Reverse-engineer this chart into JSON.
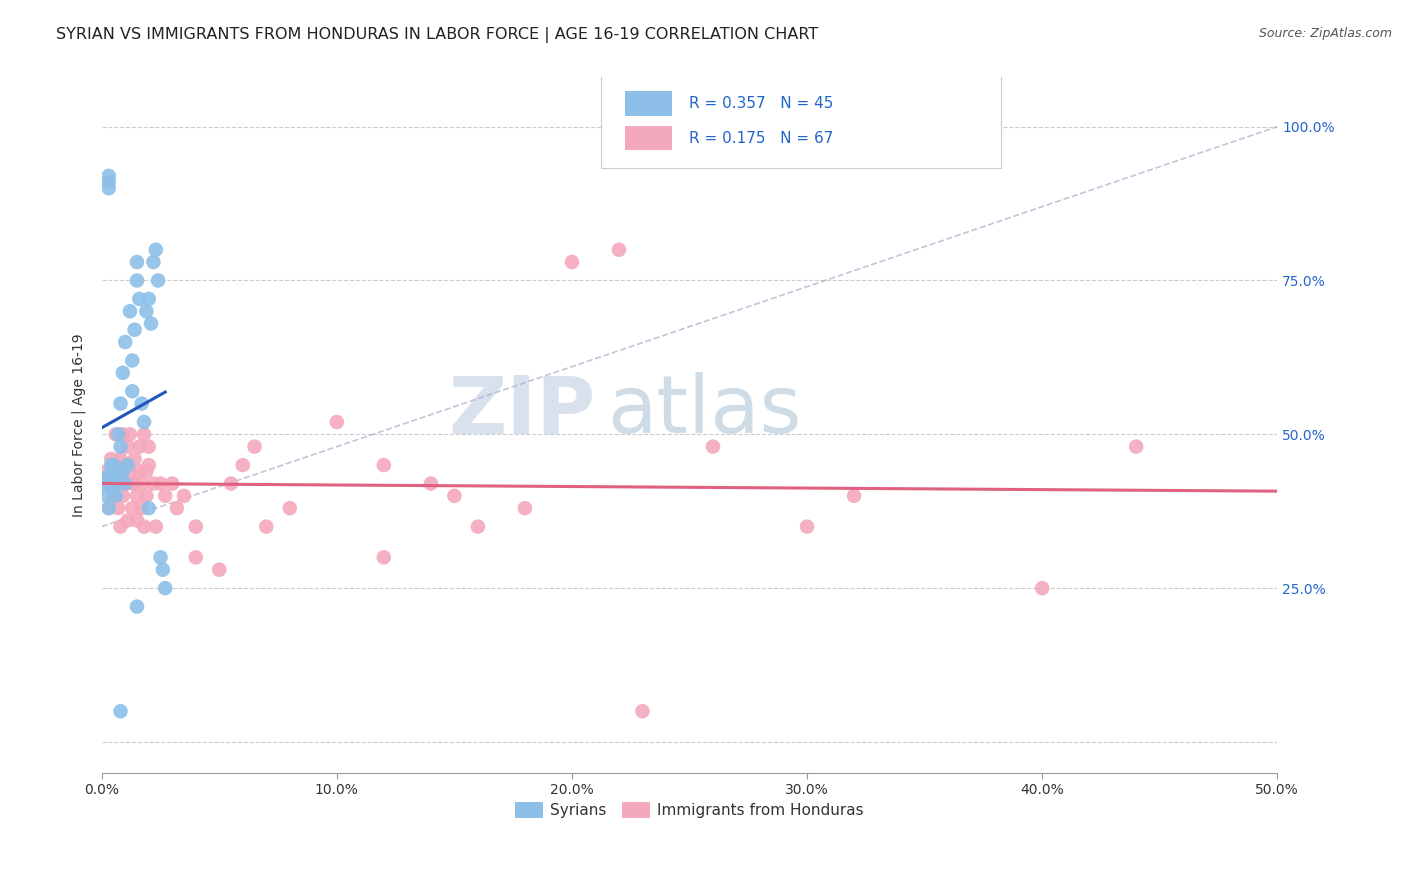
{
  "title": "SYRIAN VS IMMIGRANTS FROM HONDURAS IN LABOR FORCE | AGE 16-19 CORRELATION CHART",
  "source": "Source: ZipAtlas.com",
  "ylabel": "In Labor Force | Age 16-19",
  "xlim": [
    0.0,
    0.5
  ],
  "ylim": [
    -0.05,
    1.08
  ],
  "xtick_positions": [
    0.0,
    0.1,
    0.2,
    0.3,
    0.4,
    0.5
  ],
  "xticklabels": [
    "0.0%",
    "10.0%",
    "20.0%",
    "30.0%",
    "40.0%",
    "50.0%"
  ],
  "ytick_positions": [
    0.0,
    0.25,
    0.5,
    0.75,
    1.0
  ],
  "yticklabels_right": [
    "",
    "25.0%",
    "50.0%",
    "75.0%",
    "100.0%"
  ],
  "syrian_color": "#8dbfe8",
  "honduras_color": "#f4a8bc",
  "syrian_line_color": "#2255bb",
  "honduras_line_color": "#e06080",
  "diag_color": "#aaaacc",
  "legend_color": "#2266cc",
  "watermark_zip_color": "#c5d5e5",
  "watermark_atlas_color": "#b8ccd8",
  "background_color": "#ffffff",
  "grid_color": "#cccccc",
  "title_fontsize": 11.5,
  "source_fontsize": 9,
  "axis_label_fontsize": 10,
  "tick_fontsize": 10,
  "syrian_R": 0.357,
  "syrian_N": 45,
  "honduras_R": 0.175,
  "honduras_N": 67,
  "syrian_scatter_x": [
    0.001,
    0.002,
    0.002,
    0.003,
    0.003,
    0.003,
    0.004,
    0.004,
    0.005,
    0.005,
    0.005,
    0.006,
    0.006,
    0.007,
    0.007,
    0.008,
    0.008,
    0.009,
    0.009,
    0.01,
    0.01,
    0.011,
    0.012,
    0.013,
    0.013,
    0.014,
    0.015,
    0.015,
    0.016,
    0.017,
    0.018,
    0.019,
    0.02,
    0.021,
    0.022,
    0.023,
    0.024,
    0.025,
    0.026,
    0.027,
    0.003,
    0.003,
    0.008,
    0.015,
    0.02
  ],
  "syrian_scatter_y": [
    0.42,
    0.4,
    0.43,
    0.38,
    0.43,
    0.92,
    0.42,
    0.45,
    0.44,
    0.41,
    0.45,
    0.42,
    0.4,
    0.5,
    0.43,
    0.55,
    0.48,
    0.44,
    0.6,
    0.65,
    0.42,
    0.45,
    0.7,
    0.57,
    0.62,
    0.67,
    0.75,
    0.78,
    0.72,
    0.55,
    0.52,
    0.7,
    0.72,
    0.68,
    0.78,
    0.8,
    0.75,
    0.3,
    0.28,
    0.25,
    0.91,
    0.9,
    0.05,
    0.22,
    0.38
  ],
  "honduras_scatter_x": [
    0.001,
    0.002,
    0.003,
    0.003,
    0.004,
    0.005,
    0.005,
    0.006,
    0.006,
    0.007,
    0.007,
    0.008,
    0.008,
    0.009,
    0.009,
    0.01,
    0.01,
    0.011,
    0.011,
    0.012,
    0.012,
    0.013,
    0.013,
    0.014,
    0.014,
    0.015,
    0.015,
    0.016,
    0.016,
    0.017,
    0.017,
    0.018,
    0.018,
    0.019,
    0.019,
    0.02,
    0.02,
    0.022,
    0.023,
    0.025,
    0.027,
    0.03,
    0.032,
    0.035,
    0.04,
    0.04,
    0.05,
    0.055,
    0.06,
    0.065,
    0.07,
    0.08,
    0.1,
    0.12,
    0.14,
    0.15,
    0.16,
    0.18,
    0.2,
    0.22,
    0.26,
    0.3,
    0.32,
    0.4,
    0.23,
    0.44,
    0.12
  ],
  "honduras_scatter_y": [
    0.42,
    0.44,
    0.38,
    0.43,
    0.46,
    0.4,
    0.44,
    0.5,
    0.42,
    0.38,
    0.42,
    0.35,
    0.46,
    0.4,
    0.5,
    0.45,
    0.42,
    0.48,
    0.36,
    0.44,
    0.5,
    0.42,
    0.38,
    0.46,
    0.42,
    0.4,
    0.36,
    0.48,
    0.44,
    0.42,
    0.38,
    0.5,
    0.35,
    0.44,
    0.4,
    0.48,
    0.45,
    0.42,
    0.35,
    0.42,
    0.4,
    0.42,
    0.38,
    0.4,
    0.3,
    0.35,
    0.28,
    0.42,
    0.45,
    0.48,
    0.35,
    0.38,
    0.52,
    0.45,
    0.42,
    0.4,
    0.35,
    0.38,
    0.78,
    0.8,
    0.48,
    0.35,
    0.4,
    0.25,
    0.05,
    0.48,
    0.3
  ]
}
